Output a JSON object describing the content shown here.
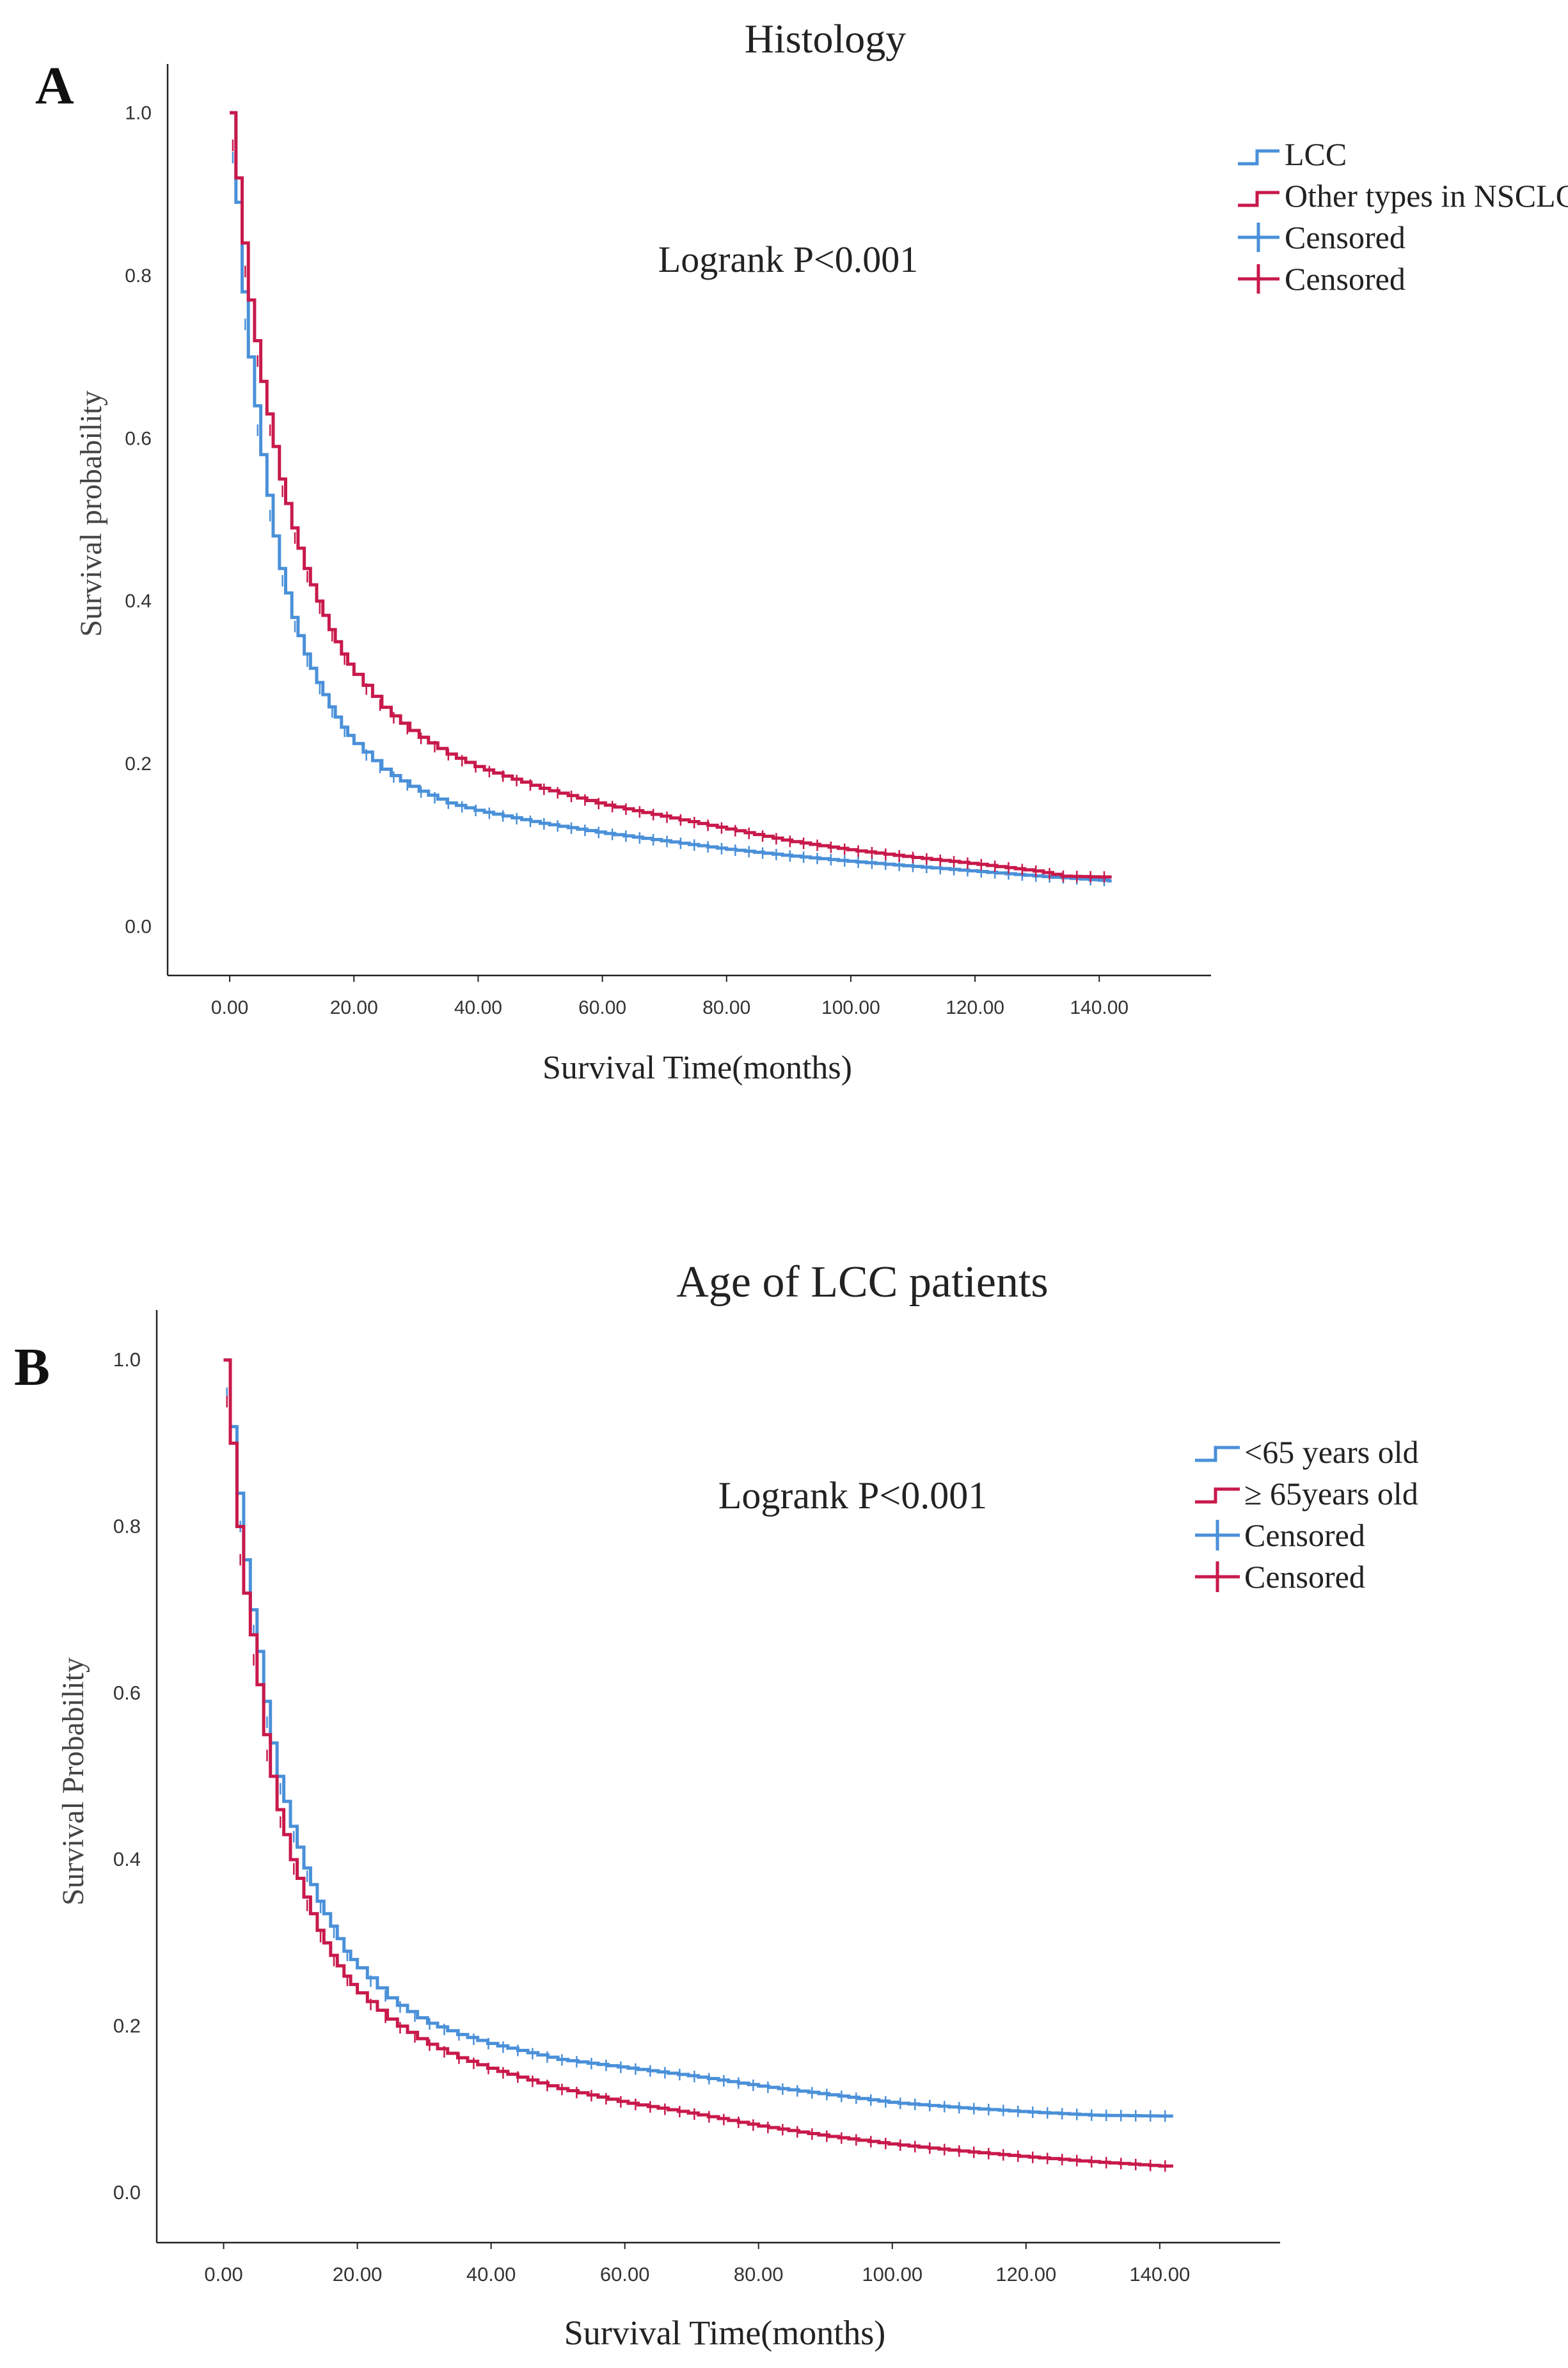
{
  "colors": {
    "series1": "#4a90d9",
    "series2": "#c8194b",
    "axis": "#222222"
  },
  "chart_data": [
    {
      "type": "line",
      "panel_label": "A",
      "title": "Histology",
      "xlabel": "Survival Time(months)",
      "ylabel": "Survival probability",
      "xlim": [
        -10,
        158
      ],
      "ylim": [
        -0.06,
        1.06
      ],
      "xticks": [
        "0.00",
        "20.00",
        "40.00",
        "60.00",
        "80.00",
        "100.00",
        "120.00",
        "140.00"
      ],
      "yticks": [
        "0.0",
        "0.2",
        "0.4",
        "0.6",
        "0.8",
        "1.0"
      ],
      "annotation": "Logrank P<0.001",
      "legend_position": "top-right",
      "legend": [
        "LCC",
        "Other types in NSCLC",
        "Censored",
        "Censored"
      ],
      "series": [
        {
          "name": "LCC",
          "x": [
            0,
            1,
            2,
            3,
            4,
            5,
            6,
            7,
            8,
            10,
            12,
            14,
            16,
            18,
            20,
            25,
            30,
            35,
            40,
            50,
            60,
            70,
            80,
            90,
            100,
            110,
            120,
            130,
            140,
            142
          ],
          "values": [
            1.0,
            0.89,
            0.78,
            0.7,
            0.64,
            0.58,
            0.53,
            0.48,
            0.44,
            0.38,
            0.335,
            0.3,
            0.27,
            0.245,
            0.225,
            0.19,
            0.168,
            0.152,
            0.142,
            0.127,
            0.115,
            0.105,
            0.095,
            0.087,
            0.08,
            0.074,
            0.068,
            0.062,
            0.057,
            0.056
          ]
        },
        {
          "name": "Other types in NSCLC",
          "x": [
            0,
            1,
            2,
            3,
            4,
            5,
            6,
            7,
            8,
            10,
            12,
            14,
            16,
            18,
            20,
            25,
            30,
            35,
            40,
            50,
            60,
            70,
            80,
            90,
            100,
            110,
            120,
            130,
            134,
            140,
            142
          ],
          "values": [
            1.0,
            0.92,
            0.84,
            0.77,
            0.72,
            0.67,
            0.63,
            0.59,
            0.55,
            0.49,
            0.44,
            0.4,
            0.365,
            0.335,
            0.31,
            0.265,
            0.235,
            0.212,
            0.195,
            0.17,
            0.15,
            0.135,
            0.12,
            0.105,
            0.094,
            0.085,
            0.077,
            0.068,
            0.062,
            0.061,
            0.061
          ]
        }
      ]
    },
    {
      "type": "line",
      "panel_label": "B",
      "title": "Age of LCC patients",
      "xlabel": "Survival Time(months)",
      "ylabel": "Survival Probability",
      "xlim": [
        -10,
        158
      ],
      "ylim": [
        -0.06,
        1.06
      ],
      "xticks": [
        "0.00",
        "20.00",
        "40.00",
        "60.00",
        "80.00",
        "100.00",
        "120.00",
        "140.00"
      ],
      "yticks": [
        "0.0",
        "0.2",
        "0.4",
        "0.6",
        "0.8",
        "1.0"
      ],
      "annotation": "Logrank P<0.001",
      "legend_position": "top-right",
      "legend": [
        "<65 years old",
        "≥ 65years old",
        "Censored",
        "Censored"
      ],
      "series": [
        {
          "name": "<65 years old",
          "x": [
            0,
            1,
            2,
            3,
            4,
            5,
            6,
            7,
            8,
            10,
            12,
            14,
            16,
            18,
            20,
            25,
            30,
            35,
            40,
            50,
            60,
            70,
            80,
            90,
            100,
            110,
            120,
            130,
            140,
            142
          ],
          "values": [
            1.0,
            0.92,
            0.84,
            0.76,
            0.7,
            0.65,
            0.59,
            0.54,
            0.5,
            0.44,
            0.39,
            0.35,
            0.32,
            0.29,
            0.27,
            0.23,
            0.205,
            0.19,
            0.178,
            0.16,
            0.15,
            0.14,
            0.128,
            0.118,
            0.108,
            0.102,
            0.097,
            0.093,
            0.092,
            0.092
          ]
        },
        {
          "name": "≥ 65years old",
          "x": [
            0,
            1,
            2,
            3,
            4,
            5,
            6,
            7,
            8,
            10,
            12,
            14,
            16,
            18,
            20,
            25,
            30,
            35,
            40,
            50,
            60,
            70,
            80,
            90,
            100,
            110,
            120,
            130,
            140,
            142
          ],
          "values": [
            1.0,
            0.9,
            0.8,
            0.72,
            0.67,
            0.61,
            0.55,
            0.5,
            0.46,
            0.4,
            0.355,
            0.315,
            0.285,
            0.26,
            0.24,
            0.205,
            0.18,
            0.162,
            0.148,
            0.125,
            0.108,
            0.095,
            0.08,
            0.068,
            0.058,
            0.05,
            0.043,
            0.037,
            0.032,
            0.032
          ]
        }
      ]
    }
  ]
}
